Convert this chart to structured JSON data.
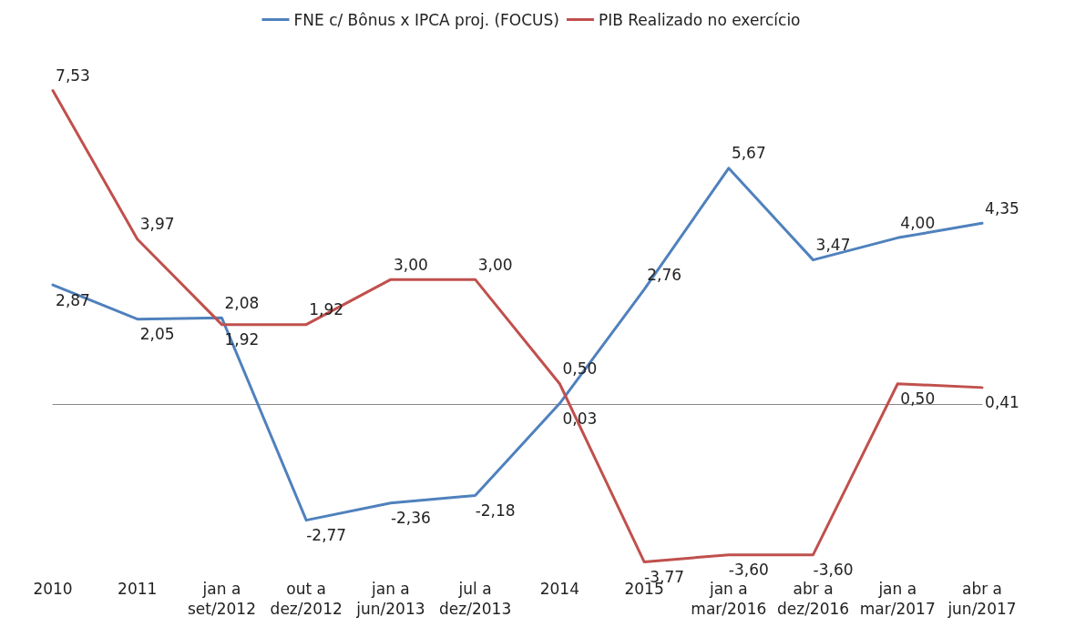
{
  "chart_data": {
    "type": "line",
    "categories": [
      "2010",
      "2011",
      "jan a\nset/2012",
      "out a\ndez/2012",
      "jan a\njun/2013",
      "jul a\ndez/2013",
      "2014",
      "2015",
      "jan a\nmar/2016",
      "abr a\ndez/2016",
      "jan a\nmar/2017",
      "abr a\njun/2017"
    ],
    "series": [
      {
        "name": "FNE c/ Bônus x IPCA proj. (FOCUS)",
        "color": "#4f81bd",
        "values": [
          2.87,
          2.05,
          2.08,
          -2.77,
          -2.36,
          -2.18,
          0.03,
          2.76,
          5.67,
          3.47,
          4.0,
          4.35
        ],
        "value_labels": [
          "2,87",
          "2,05",
          "2,08",
          "-2,77",
          "-2,36",
          "-2,18",
          "0,03",
          "2,76",
          "5,67",
          "3,47",
          "4,00",
          "4,35"
        ]
      },
      {
        "name": "PIB Realizado no exercício",
        "color": "#c0504d",
        "values": [
          7.53,
          3.97,
          1.92,
          1.92,
          3.0,
          3.0,
          0.5,
          -3.77,
          -3.6,
          -3.6,
          0.5,
          0.41
        ],
        "value_labels": [
          "7,53",
          "3,97",
          "1,92",
          "1,92",
          "3,00",
          "3,00",
          "0,50",
          "-3,77",
          "-3,60",
          "-3,60",
          "0,50",
          "0,41"
        ]
      }
    ],
    "legend": "top",
    "grid": false,
    "marker": "none",
    "line_style": "solid",
    "tick_labels": "x"
  }
}
